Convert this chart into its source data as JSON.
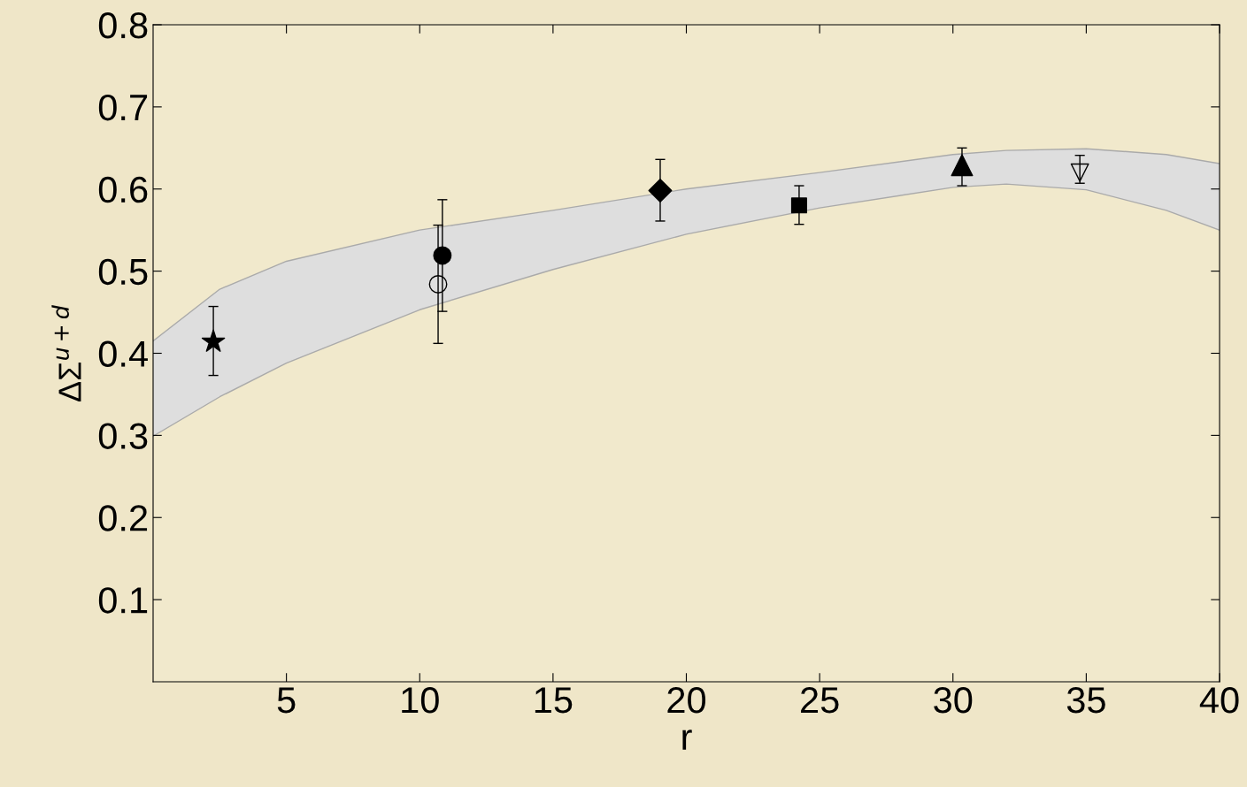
{
  "chart_data": {
    "type": "scatter",
    "xlabel": "r",
    "ylabel": "ΔΣ$^{u+d}$",
    "xlim": [
      0,
      40
    ],
    "ylim": [
      0,
      0.8
    ],
    "xticks": [
      5,
      10,
      15,
      20,
      25,
      30,
      35,
      40
    ],
    "yticks": [
      0.1,
      0.2,
      0.3,
      0.4,
      0.5,
      0.6,
      0.7,
      0.8
    ],
    "grid": false,
    "legend": false,
    "series": [
      {
        "type": "area",
        "color": "#dedede",
        "x": [
          0,
          2.5,
          5,
          10,
          15,
          20,
          25,
          30,
          32,
          35,
          38,
          40
        ],
        "values": [
          0.415,
          0.478,
          0.512,
          0.55,
          0.574,
          0.6,
          0.62,
          0.642,
          0.647,
          0.649,
          0.642,
          0.631
        ]
      },
      {
        "type": "area",
        "color": "#f1e9cc",
        "x": [
          0,
          2.5,
          5,
          10,
          15,
          20,
          25,
          30,
          32,
          35,
          38,
          40
        ],
        "values": [
          0.299,
          0.347,
          0.388,
          0.453,
          0.502,
          0.545,
          0.577,
          0.602,
          0.606,
          0.599,
          0.574,
          0.55
        ]
      },
      {
        "type": "scatter",
        "marker": "star",
        "color": "#000000",
        "x": [
          2.26
        ],
        "values": [
          0.414
        ],
        "errors": [
          [
            0.373,
            0.457
          ]
        ]
      },
      {
        "type": "scatter",
        "marker": "circle_open",
        "color": "#000000",
        "x": [
          10.69
        ],
        "values": [
          0.484
        ],
        "errors": [
          [
            0.412,
            0.556
          ]
        ]
      },
      {
        "marker": "circle",
        "color": "#000000",
        "x": [
          10.85
        ],
        "values": [
          0.519
        ],
        "errors": [
          [
            0.451,
            0.587
          ]
        ]
      },
      {
        "marker": "diamond",
        "color": "#000000",
        "x": [
          19.02
        ],
        "values": [
          0.598
        ],
        "errors": [
          [
            0.561,
            0.636
          ]
        ]
      },
      {
        "marker": "square",
        "color": "#000000",
        "x": [
          24.23
        ],
        "values": [
          0.58
        ],
        "errors": [
          [
            0.557,
            0.604
          ]
        ]
      },
      {
        "marker": "triangle",
        "color": "#000000",
        "x": [
          30.34
        ],
        "values": [
          0.629
        ],
        "errors": [
          [
            0.604,
            0.65
          ]
        ]
      },
      {
        "marker": "triangle_down_open",
        "color": "#000000",
        "x": [
          34.76
        ],
        "values": [
          0.62
        ],
        "errors": [
          [
            0.607,
            0.641
          ]
        ]
      }
    ]
  }
}
